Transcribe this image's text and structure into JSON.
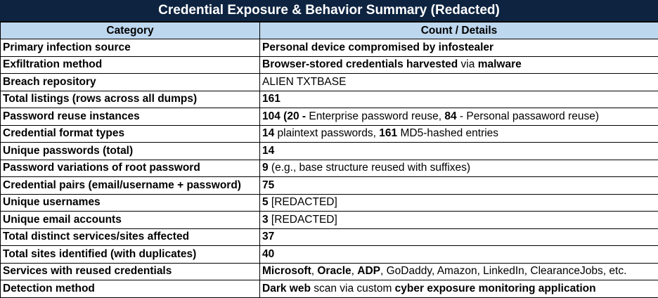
{
  "title": "Credential Exposure & Behavior Summary (Redacted)",
  "headers": {
    "category": "Category",
    "details": "Count / Details"
  },
  "rows": [
    {
      "category": "Primary infection source",
      "details": [
        {
          "t": "Personal device compromised by infostealer",
          "b": true
        }
      ]
    },
    {
      "category": "Exfiltration method",
      "details": [
        {
          "t": "Browser-stored credentials harvested",
          "b": true
        },
        {
          "t": " via ",
          "b": false
        },
        {
          "t": "malware",
          "b": true
        }
      ]
    },
    {
      "category": "Breach repository",
      "details": [
        {
          "t": "ALIEN TXTBASE",
          "b": false
        }
      ]
    },
    {
      "category": "Total listings (rows across all dumps)",
      "details": [
        {
          "t": "161",
          "b": true
        }
      ]
    },
    {
      "category": "Password reuse instances",
      "details": [
        {
          "t": "104 (20 - ",
          "b": true
        },
        {
          "t": "Enterprise password reuse, ",
          "b": false
        },
        {
          "t": "84",
          "b": true
        },
        {
          "t": " - Personal passaword reuse)",
          "b": false
        }
      ]
    },
    {
      "category": "Credential format types",
      "details": [
        {
          "t": "14",
          "b": true
        },
        {
          "t": " plaintext passwords, ",
          "b": false
        },
        {
          "t": "161",
          "b": true
        },
        {
          "t": " MD5-hashed entries",
          "b": false
        }
      ]
    },
    {
      "category": "Unique passwords (total)",
      "details": [
        {
          "t": "14",
          "b": true
        }
      ]
    },
    {
      "category": "Password variations of root password",
      "details": [
        {
          "t": "9",
          "b": true
        },
        {
          "t": " (e.g., base structure reused with suffixes)",
          "b": false
        }
      ]
    },
    {
      "category": "Credential pairs (email/username + password)",
      "details": [
        {
          "t": "75",
          "b": true
        }
      ]
    },
    {
      "category": "Unique usernames",
      "details": [
        {
          "t": "5",
          "b": true
        },
        {
          "t": " [REDACTED]",
          "b": false
        }
      ]
    },
    {
      "category": "Unique email accounts",
      "details": [
        {
          "t": "3",
          "b": true
        },
        {
          "t": " [REDACTED]",
          "b": false
        }
      ]
    },
    {
      "category": "Total distinct services/sites affected",
      "details": [
        {
          "t": "37",
          "b": true
        }
      ]
    },
    {
      "category": "Total sites identified (with duplicates)",
      "details": [
        {
          "t": "40",
          "b": true
        }
      ]
    },
    {
      "category": "Services with reused credentials",
      "details": [
        {
          "t": "Microsoft",
          "b": true
        },
        {
          "t": ", ",
          "b": false
        },
        {
          "t": "Oracle",
          "b": true
        },
        {
          "t": ", ",
          "b": false
        },
        {
          "t": "ADP",
          "b": true
        },
        {
          "t": ", GoDaddy, Amazon, LinkedIn, ClearanceJobs, etc.",
          "b": false
        }
      ]
    },
    {
      "category": "Detection method",
      "details": [
        {
          "t": "Dark web",
          "b": true
        },
        {
          "t": " scan via custom ",
          "b": false
        },
        {
          "t": "cyber exposure monitoring application",
          "b": true
        }
      ]
    }
  ],
  "colors": {
    "title_bg": "#0d2340",
    "header_bg": "#bdd7ee"
  }
}
